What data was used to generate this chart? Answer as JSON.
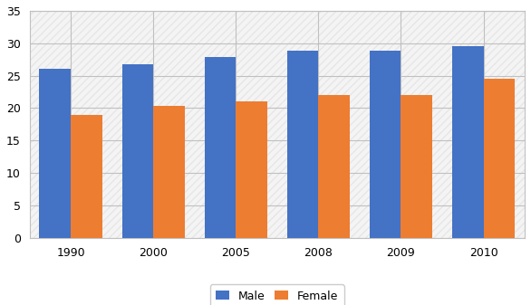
{
  "years": [
    "1990",
    "2000",
    "2005",
    "2008",
    "2009",
    "2010"
  ],
  "male": [
    26.0,
    26.8,
    27.9,
    28.8,
    28.8,
    29.5
  ],
  "female": [
    19.0,
    20.4,
    21.0,
    22.0,
    22.0,
    24.5
  ],
  "male_color": "#4472C4",
  "female_color": "#ED7D31",
  "ylim": [
    0,
    35
  ],
  "yticks": [
    0,
    5,
    10,
    15,
    20,
    25,
    30,
    35
  ],
  "legend_labels": [
    "Male",
    "Female"
  ],
  "bar_width": 0.38,
  "background_color": "#ffffff",
  "grid_color": "#c0c0c0",
  "hatch_color": "#d8d8d8"
}
